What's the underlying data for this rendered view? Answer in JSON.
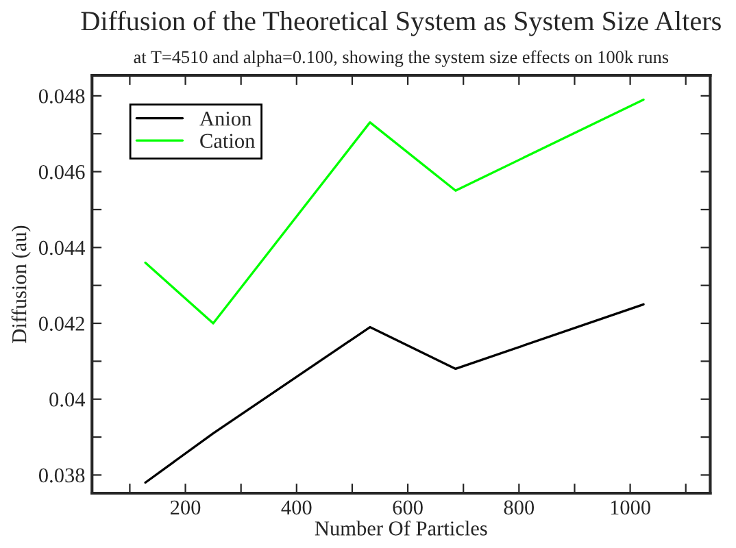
{
  "chart_data": {
    "type": "line",
    "title": "Diffusion of the Theoretical System as System Size Alters",
    "subtitle": "at T=4510 and alpha=0.100, showing the system size effects on 100k runs",
    "xlabel": "Number Of Particles",
    "ylabel": "Diffusion (au)",
    "x": [
      128,
      250,
      532,
      686,
      1024
    ],
    "series": [
      {
        "name": "Anion",
        "color": "#000000",
        "values": [
          0.0378,
          0.0391,
          0.0419,
          0.0408,
          0.0425
        ]
      },
      {
        "name": "Cation",
        "color": "#00ff00",
        "values": [
          0.0436,
          0.042,
          0.0473,
          0.0455,
          0.0479
        ]
      }
    ],
    "xlim": [
      32,
      1144
    ],
    "ylim": [
      0.03752,
      0.04854
    ],
    "xticks": [
      {
        "value": 100,
        "label": null
      },
      200,
      {
        "value": 300,
        "label": null
      },
      400,
      {
        "value": 500,
        "label": null
      },
      600,
      {
        "value": 700,
        "label": null
      },
      800,
      {
        "value": 900,
        "label": null
      },
      1000,
      {
        "value": 1100,
        "label": null
      }
    ],
    "yticks": [
      0.038,
      {
        "value": 0.039,
        "label": null
      },
      {
        "value": 0.04,
        "label": "0.04"
      },
      {
        "value": 0.041,
        "label": null
      },
      0.042,
      {
        "value": 0.043,
        "label": null
      },
      0.044,
      {
        "value": 0.045,
        "label": null
      },
      0.046,
      {
        "value": 0.047,
        "label": null
      },
      0.048
    ],
    "legend": "top left",
    "grid": false,
    "line_style": "solid",
    "marker": "none"
  }
}
